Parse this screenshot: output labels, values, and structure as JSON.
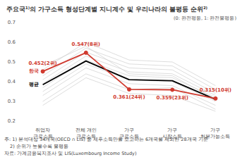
{
  "chart_data": {
    "type": "line",
    "title": "주요국¹⁾의 가구소득 형성단계별 지니계수 및 우리나라의 불평등 순위²⁾",
    "subtitle": "(0: 완전평등, 1: 완전불평등)",
    "categories": [
      "취업자\n근로소득",
      "전체 개인\n근로소득",
      "가구\n근로소득",
      "가구\n시장소득",
      "가구\n처분가능소득"
    ],
    "ylim": [
      0.2,
      0.7
    ],
    "yticks": [
      0.2,
      0.3,
      0.4,
      0.5,
      0.6,
      0.7
    ],
    "grid": false,
    "series": [
      {
        "color": "#cfcfcf",
        "values": [
          0.3,
          0.44,
          0.36,
          0.37,
          0.26
        ]
      },
      {
        "color": "#cfcfcf",
        "values": [
          0.33,
          0.47,
          0.39,
          0.38,
          0.28
        ]
      },
      {
        "color": "#cfcfcf",
        "values": [
          0.35,
          0.49,
          0.41,
          0.4,
          0.3
        ]
      },
      {
        "color": "#cfcfcf",
        "values": [
          0.37,
          0.51,
          0.43,
          0.42,
          0.32
        ]
      },
      {
        "color": "#cfcfcf",
        "values": [
          0.39,
          0.53,
          0.45,
          0.44,
          0.33
        ]
      },
      {
        "color": "#cfcfcf",
        "values": [
          0.41,
          0.55,
          0.47,
          0.46,
          0.34
        ]
      },
      {
        "color": "#cfcfcf",
        "values": [
          0.43,
          0.57,
          0.49,
          0.48,
          0.36
        ]
      },
      {
        "color": "#cfcfcf",
        "values": [
          0.46,
          0.6,
          0.51,
          0.5,
          0.38
        ]
      },
      {
        "color": "#cfcfcf",
        "values": [
          0.28,
          0.42,
          0.34,
          0.33,
          0.25
        ]
      },
      {
        "color": "#cfcfcf",
        "values": [
          0.48,
          0.58,
          0.44,
          0.43,
          0.31
        ]
      },
      {
        "name": "평균",
        "color": "#000000",
        "marker": "none",
        "values": [
          0.385,
          0.505,
          0.41,
          0.405,
          0.31
        ]
      },
      {
        "name": "한국",
        "color": "#d03a2f",
        "marker": "circle",
        "data_labels": true,
        "values": [
          0.452,
          0.547,
          0.361,
          0.359,
          0.315
        ],
        "value_labels": [
          "0.452(2위)",
          "0.547(8위)",
          "0.361(24위)",
          "0.359(23위)",
          "0.315(10위)"
        ]
      }
    ],
    "notes": [
      "주: 1) 분석대상 34개국(OECD ∩ LIS) 중 세후소득만을 보고하는 6개국을 제외한 28개국 기준",
      "2) 순위가 높을수록 불평등"
    ],
    "source": "자료: 가계금융복지조사 및 LIS(Luxembourg Income Study)"
  }
}
